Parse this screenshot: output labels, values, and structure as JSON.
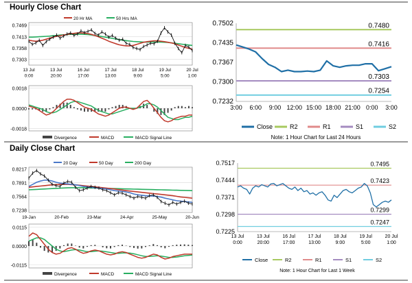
{
  "colors": {
    "close": "#1f6fa6",
    "r2": "#a7c95f",
    "r1": "#e08a8a",
    "s1": "#a48bc0",
    "s2": "#6fcde0",
    "ma20": "#c0392b",
    "ma50": "#27ae60",
    "price": "#111111",
    "macd": "#c0392b",
    "signal": "#27ae60",
    "divergence": "#444444",
    "day20": "#4a78c8",
    "day50": "#c0392b",
    "day200": "#27ae60"
  },
  "sections": {
    "hourly_title": "Hourly Close Chart",
    "daily_title": "Daily Close Chart"
  },
  "chart_data": [
    {
      "id": "hourly_price",
      "type": "line",
      "legend": [
        "20 Hr MA",
        "50 Hrs MA"
      ],
      "yticks": [
        "0.7469",
        "0.7413",
        "0.7358",
        "0.7303"
      ],
      "ylim": [
        0.7275,
        0.748
      ],
      "xticks": [
        "13 Jul\n0:00",
        "13 Jul\n20:00",
        "16 Jul\n17:00",
        "17 Jul\n13:00",
        "18 Jul\n9:00",
        "19 Jul\n5:00",
        "20 Jul\n1:00"
      ],
      "price": [
        0.739,
        0.7375,
        0.7382,
        0.7395,
        0.737,
        0.7388,
        0.74,
        0.741,
        0.742,
        0.7405,
        0.7415,
        0.7425,
        0.743,
        0.7418,
        0.7425,
        0.744,
        0.7432,
        0.7438,
        0.7445,
        0.7428,
        0.742,
        0.7435,
        0.7425,
        0.741,
        0.7418,
        0.7405,
        0.7395,
        0.74,
        0.738,
        0.7375,
        0.736,
        0.7355,
        0.735,
        0.7365,
        0.7372,
        0.738,
        0.7378,
        0.739,
        0.743,
        0.7455,
        0.7435,
        0.742,
        0.738,
        0.7355,
        0.7335,
        0.737,
        0.7362,
        0.7345
      ],
      "ma20": [
        0.7395,
        0.7392,
        0.739,
        0.7392,
        0.7395,
        0.74,
        0.7405,
        0.741,
        0.7414,
        0.7417,
        0.742,
        0.7423,
        0.7426,
        0.7428,
        0.743,
        0.743,
        0.7429,
        0.7427,
        0.7423,
        0.7418,
        0.7412,
        0.7405,
        0.7398,
        0.739,
        0.7384,
        0.7378,
        0.7373,
        0.737,
        0.7368,
        0.7368,
        0.737,
        0.7375,
        0.738,
        0.7385,
        0.7388,
        0.739,
        0.7392,
        0.7392,
        0.739,
        0.7388,
        0.7385,
        0.7382,
        0.7378,
        0.7372,
        0.7366,
        0.736,
        0.7356,
        0.7352
      ],
      "ma50": [
        0.741,
        0.741,
        0.7411,
        0.7412,
        0.7413,
        0.7414,
        0.7415,
        0.7417,
        0.7418,
        0.742,
        0.7421,
        0.7422,
        0.7423,
        0.7424,
        0.7424,
        0.7424,
        0.7423,
        0.7422,
        0.742,
        0.7418,
        0.7416,
        0.7413,
        0.741,
        0.7407,
        0.7404,
        0.7401,
        0.7398,
        0.7395,
        0.7393,
        0.7391,
        0.7389,
        0.7388,
        0.7387,
        0.7386,
        0.7386,
        0.7386,
        0.7386,
        0.7386,
        0.7386,
        0.7385,
        0.7384,
        0.7382,
        0.738,
        0.7378,
        0.7376,
        0.7374,
        0.7372,
        0.737
      ]
    },
    {
      "id": "hourly_macd",
      "type": "bar",
      "yticks": [
        "0.0018",
        "0.0000",
        "-0.0018"
      ],
      "ylim": [
        -0.002,
        0.002
      ],
      "legend": [
        "Divergence",
        "MACD",
        "MACD Signal Line"
      ],
      "macd": [
        0.0002,
        0.0001,
        0.0,
        -0.0002,
        -0.0004,
        -0.0006,
        -0.0005,
        -0.0003,
        0.0,
        0.0003,
        0.0006,
        0.0008,
        0.0008,
        0.0007,
        0.0005,
        0.0003,
        0.0001,
        0.0,
        -0.0001,
        -0.0003,
        -0.0005,
        -0.0006,
        -0.0007,
        -0.0006,
        -0.0004,
        -0.0002,
        0.0,
        0.0001,
        0.0001,
        0.0,
        -0.0001,
        0.0,
        0.0003,
        0.0006,
        0.0007,
        0.0004,
        0.0,
        -0.0004,
        -0.0008,
        -0.0011,
        -0.0012,
        -0.0011,
        -0.0009,
        -0.0008,
        -0.0007,
        -0.0007,
        -0.0006,
        -0.0006
      ],
      "signal": [
        0.0003,
        0.0002,
        0.0001,
        0.0,
        -0.0001,
        -0.0003,
        -0.0004,
        -0.0004,
        -0.0003,
        -0.0001,
        0.0001,
        0.0003,
        0.0005,
        0.0006,
        0.0006,
        0.0005,
        0.0004,
        0.0003,
        0.0002,
        0.0,
        -0.0002,
        -0.0003,
        -0.0004,
        -0.0005,
        -0.0005,
        -0.0004,
        -0.0003,
        -0.0002,
        -0.0001,
        0.0,
        0.0,
        0.0,
        0.0001,
        0.0002,
        0.0004,
        0.0004,
        0.0003,
        0.0001,
        -0.0002,
        -0.0005,
        -0.0008,
        -0.0009,
        -0.001,
        -0.001,
        -0.0009,
        -0.0008,
        -0.0008,
        -0.0007
      ],
      "divergence": [
        -0.0001,
        -0.0001,
        -0.0001,
        -0.0002,
        -0.0003,
        -0.0003,
        -0.0001,
        0.0001,
        0.0003,
        0.0004,
        0.0005,
        0.0005,
        0.0003,
        0.0001,
        -0.0001,
        -0.0002,
        -0.0003,
        -0.0003,
        -0.0003,
        -0.0003,
        -0.0003,
        -0.0003,
        -0.0003,
        -0.0001,
        0.0001,
        0.0002,
        0.0003,
        0.0003,
        0.0002,
        0.0,
        -0.0001,
        0.0,
        0.0002,
        0.0004,
        0.0003,
        0.0,
        -0.0003,
        -0.0005,
        -0.0006,
        -0.0006,
        -0.0004,
        -0.0002,
        0.0001,
        0.0002,
        0.0002,
        0.0001,
        0.0002,
        0.0001
      ]
    },
    {
      "id": "hourly_close",
      "type": "line",
      "yticks": [
        "0.7502",
        "0.7435",
        "0.7367",
        "0.7300",
        "0.7232"
      ],
      "ylim": [
        0.7232,
        0.7502
      ],
      "xticks": [
        "3:00",
        "6:00",
        "9:00",
        "12:00",
        "15:00",
        "18:00",
        "21:00",
        "0:00",
        "3:00"
      ],
      "levels": [
        {
          "name": "R2",
          "value": 0.748,
          "label": "0.7480"
        },
        {
          "name": "R1",
          "value": 0.7416,
          "label": "0.7416"
        },
        {
          "name": "S1",
          "value": 0.7303,
          "label": "0.7303"
        },
        {
          "name": "S2",
          "value": 0.7254,
          "label": "0.7254"
        }
      ],
      "close": [
        0.7427,
        0.742,
        0.7413,
        0.7403,
        0.738,
        0.736,
        0.735,
        0.7335,
        0.734,
        0.7335,
        0.7335,
        0.7337,
        0.7335,
        0.734,
        0.7372,
        0.7355,
        0.735,
        0.7355,
        0.7357,
        0.7357,
        0.7362,
        0.7362,
        0.7338,
        0.7345,
        0.7352
      ],
      "legend": [
        "Close",
        "R2",
        "R1",
        "S1",
        "S2"
      ],
      "note": "Note: 1 Hour Chart for Last 24 Hours"
    },
    {
      "id": "daily_price",
      "type": "line",
      "legend": [
        "20 Day",
        "50 Day",
        "200 Day"
      ],
      "yticks": [
        "0.8217",
        "0.7891",
        "0.7564",
        "0.7238"
      ],
      "ylim": [
        0.718,
        0.826
      ],
      "xticks": [
        "19-Jan",
        "20-Feb",
        "23-Mar",
        "24-Apr",
        "25-May",
        "20-Jun"
      ],
      "price": [
        0.8,
        0.812,
        0.818,
        0.81,
        0.805,
        0.795,
        0.785,
        0.782,
        0.78,
        0.788,
        0.792,
        0.79,
        0.778,
        0.77,
        0.772,
        0.776,
        0.78,
        0.778,
        0.776,
        0.772,
        0.77,
        0.765,
        0.76,
        0.765,
        0.764,
        0.76,
        0.756,
        0.752,
        0.756,
        0.754,
        0.752,
        0.758,
        0.76,
        0.754,
        0.744,
        0.74,
        0.736,
        0.742,
        0.738,
        0.742,
        0.745,
        0.74,
        0.738
      ],
      "ma20": [
        0.78,
        0.785,
        0.79,
        0.793,
        0.795,
        0.795,
        0.793,
        0.79,
        0.788,
        0.787,
        0.786,
        0.785,
        0.784,
        0.782,
        0.78,
        0.779,
        0.778,
        0.777,
        0.776,
        0.775,
        0.774,
        0.772,
        0.77,
        0.769,
        0.768,
        0.767,
        0.765,
        0.762,
        0.76,
        0.759,
        0.758,
        0.7575,
        0.757,
        0.756,
        0.7545,
        0.752,
        0.75,
        0.748,
        0.746,
        0.745,
        0.744,
        0.743,
        0.742
      ],
      "ma50": [
        0.778,
        0.779,
        0.78,
        0.781,
        0.782,
        0.783,
        0.784,
        0.7845,
        0.785,
        0.7852,
        0.785,
        0.7845,
        0.784,
        0.783,
        0.782,
        0.781,
        0.78,
        0.779,
        0.778,
        0.777,
        0.776,
        0.775,
        0.774,
        0.7725,
        0.7715,
        0.77,
        0.769,
        0.768,
        0.767,
        0.766,
        0.765,
        0.764,
        0.763,
        0.762,
        0.761,
        0.76,
        0.759,
        0.758,
        0.7565,
        0.755,
        0.754,
        0.753,
        0.752
      ],
      "ma200": [
        0.772,
        0.7725,
        0.773,
        0.7735,
        0.774,
        0.7745,
        0.775,
        0.7755,
        0.776,
        0.7765,
        0.7768,
        0.777,
        0.777,
        0.777,
        0.777,
        0.7768,
        0.7765,
        0.7762,
        0.776,
        0.7758,
        0.7755,
        0.7752,
        0.775,
        0.7747,
        0.7745,
        0.7742,
        0.774,
        0.7737,
        0.7735,
        0.7732,
        0.773,
        0.7727,
        0.7725,
        0.7722,
        0.772,
        0.7717,
        0.7715,
        0.7712,
        0.771,
        0.7707,
        0.7705,
        0.7702,
        0.77
      ]
    },
    {
      "id": "daily_macd",
      "type": "bar",
      "yticks": [
        "0.0115",
        "0.0000",
        "-0.0115"
      ],
      "ylim": [
        -0.0135,
        0.0135
      ],
      "legend": [
        "Divergence",
        "MACD",
        "MACD Signal Line"
      ],
      "macd": [
        0.006,
        0.008,
        0.007,
        0.004,
        0.001,
        -0.002,
        -0.004,
        -0.005,
        -0.0045,
        -0.003,
        -0.0015,
        -0.001,
        -0.002,
        -0.0035,
        -0.0045,
        -0.004,
        -0.003,
        -0.0025,
        -0.003,
        -0.004,
        -0.005,
        -0.0055,
        -0.005,
        -0.004,
        -0.0035,
        -0.004,
        -0.005,
        -0.006,
        -0.007,
        -0.0075,
        -0.007,
        -0.006,
        -0.005,
        -0.0055,
        -0.007,
        -0.008,
        -0.0075,
        -0.0065,
        -0.006,
        -0.0055,
        -0.005,
        -0.005,
        -0.005
      ],
      "signal": [
        0.003,
        0.004,
        0.005,
        0.005,
        0.004,
        0.002,
        0.0,
        -0.002,
        -0.003,
        -0.0035,
        -0.003,
        -0.0025,
        -0.0022,
        -0.0025,
        -0.003,
        -0.0035,
        -0.0035,
        -0.0032,
        -0.003,
        -0.0032,
        -0.0036,
        -0.004,
        -0.0044,
        -0.0045,
        -0.0043,
        -0.0042,
        -0.0044,
        -0.0048,
        -0.0054,
        -0.006,
        -0.0064,
        -0.0064,
        -0.0062,
        -0.006,
        -0.0062,
        -0.0066,
        -0.007,
        -0.007,
        -0.0068,
        -0.0064,
        -0.006,
        -0.0058,
        -0.0056
      ],
      "divergence": [
        0.003,
        0.004,
        0.002,
        -0.001,
        -0.003,
        -0.004,
        -0.004,
        -0.003,
        -0.0015,
        0.0005,
        0.0015,
        0.0015,
        0.0002,
        -0.001,
        -0.0015,
        -0.0005,
        0.0005,
        0.0007,
        0.0,
        -0.0008,
        -0.0014,
        -0.0015,
        -0.0006,
        0.0005,
        0.0008,
        0.0002,
        -0.0006,
        -0.0012,
        -0.0016,
        -0.0015,
        -0.0006,
        0.0004,
        0.0012,
        0.0005,
        -0.0008,
        -0.0014,
        -0.0005,
        0.0005,
        0.0008,
        0.0009,
        0.001,
        0.0008,
        0.0006
      ]
    },
    {
      "id": "daily_close",
      "type": "line",
      "yticks": [
        "0.7517",
        "0.7444",
        "0.7371",
        "0.7298",
        "0.7225"
      ],
      "ylim": [
        0.7225,
        0.7517
      ],
      "xticks": [
        "13 Jul\n0:00",
        "13 Jul\n20:00",
        "16 Jul\n17:00",
        "17 Jul\n13:00",
        "18 Jul\n9:00",
        "19 Jul\n5:00",
        "20 Jul\n1:00"
      ],
      "levels": [
        {
          "name": "R2",
          "value": 0.7495,
          "label": "0.7495"
        },
        {
          "name": "R1",
          "value": 0.7423,
          "label": "0.7423"
        },
        {
          "name": "S1",
          "value": 0.7299,
          "label": "0.7299"
        },
        {
          "name": "S2",
          "value": 0.7247,
          "label": "0.7247"
        }
      ],
      "close": [
        0.7415,
        0.742,
        0.741,
        0.7405,
        0.7385,
        0.741,
        0.742,
        0.7415,
        0.7425,
        0.742,
        0.7415,
        0.7428,
        0.743,
        0.742,
        0.7425,
        0.743,
        0.742,
        0.741,
        0.7405,
        0.7415,
        0.74,
        0.741,
        0.7395,
        0.74,
        0.7385,
        0.739,
        0.738,
        0.739,
        0.7395,
        0.738,
        0.736,
        0.7355,
        0.738,
        0.737,
        0.7385,
        0.74,
        0.7405,
        0.7395,
        0.739,
        0.74,
        0.741,
        0.7415,
        0.743,
        0.742,
        0.739,
        0.734,
        0.733,
        0.734,
        0.735,
        0.7355,
        0.735,
        0.736
      ],
      "legend": [
        "Close",
        "R2",
        "R1",
        "S1",
        "S2"
      ],
      "note": "Note: 1 Hour Chart for Last 1 Week"
    }
  ]
}
